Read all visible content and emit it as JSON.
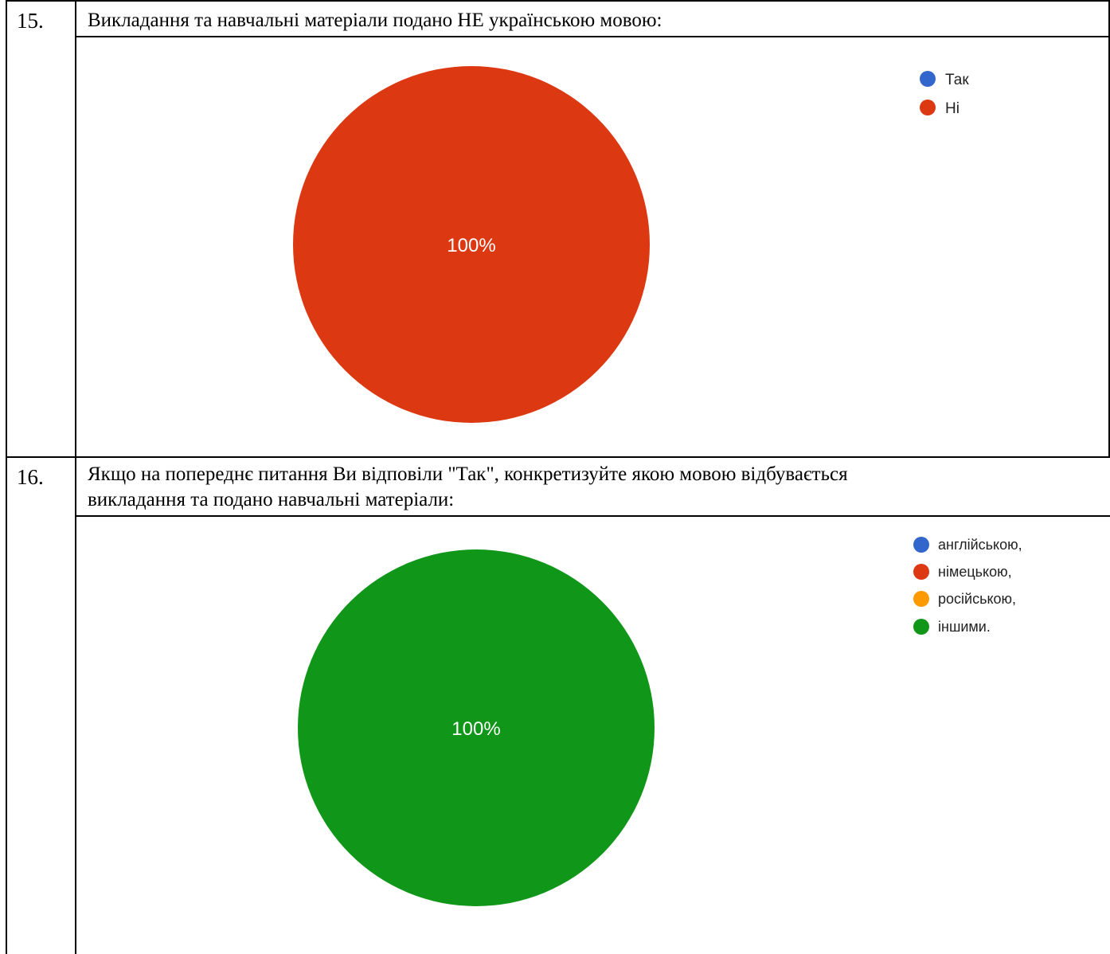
{
  "questions": [
    {
      "number": "15.",
      "text": "Викладання та навчальні матеріали подано НЕ українською мовою:"
    },
    {
      "number": "16.",
      "text_line1": "Якщо на попереднє питання Ви відповіли \"Так\", конкретизуйте якою мовою відбувається",
      "text_line2": "викладання та подано навчальні матеріали:"
    }
  ],
  "chart_data": [
    {
      "type": "pie",
      "categories": [
        "Так",
        "Ні"
      ],
      "values": [
        0,
        100
      ],
      "colors": [
        "#3366cc",
        "#dc3912"
      ],
      "slice_labels": [
        "",
        "100%"
      ],
      "legend_position": "top-right"
    },
    {
      "type": "pie",
      "categories": [
        "англійською,",
        "німецькою,",
        "російською,",
        "іншими."
      ],
      "values": [
        0,
        0,
        0,
        100
      ],
      "colors": [
        "#3366cc",
        "#dc3912",
        "#ff9900",
        "#109618"
      ],
      "slice_labels": [
        "",
        "",
        "",
        "100%"
      ],
      "legend_position": "top-right"
    }
  ]
}
